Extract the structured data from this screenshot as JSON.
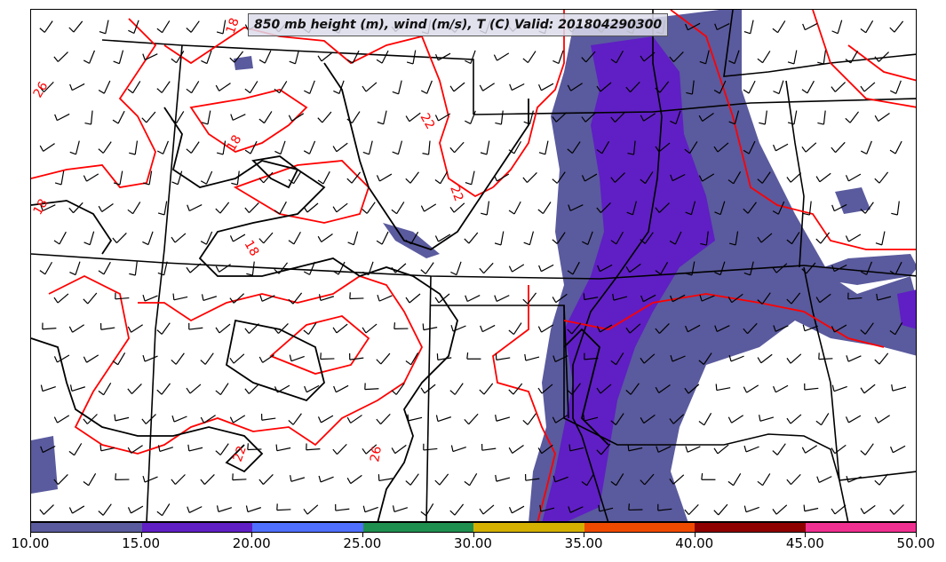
{
  "title": "850 mb height (m), wind (m/s), T (C) Valid: 201804290300",
  "colorbar": {
    "ticks": [
      "10.00",
      "15.00",
      "20.00",
      "25.00",
      "30.00",
      "35.00",
      "40.00",
      "45.00",
      "50.00"
    ],
    "colors": [
      "#5a5a9e",
      "#5f1fc4",
      "#4f6fff",
      "#1f8f4f",
      "#d4b000",
      "#f04a00",
      "#8f0000",
      "#f03090"
    ]
  },
  "contours": {
    "temperature_color": "#ff0000",
    "height_color": "#000000",
    "temperature_labels": [
      "18",
      "18",
      "22",
      "22",
      "18",
      "18",
      "22",
      "26",
      "26"
    ]
  },
  "wind_shading_colors": {
    "speed_10_15": "#5a5a9e",
    "speed_15_20": "#5f1fc4"
  }
}
